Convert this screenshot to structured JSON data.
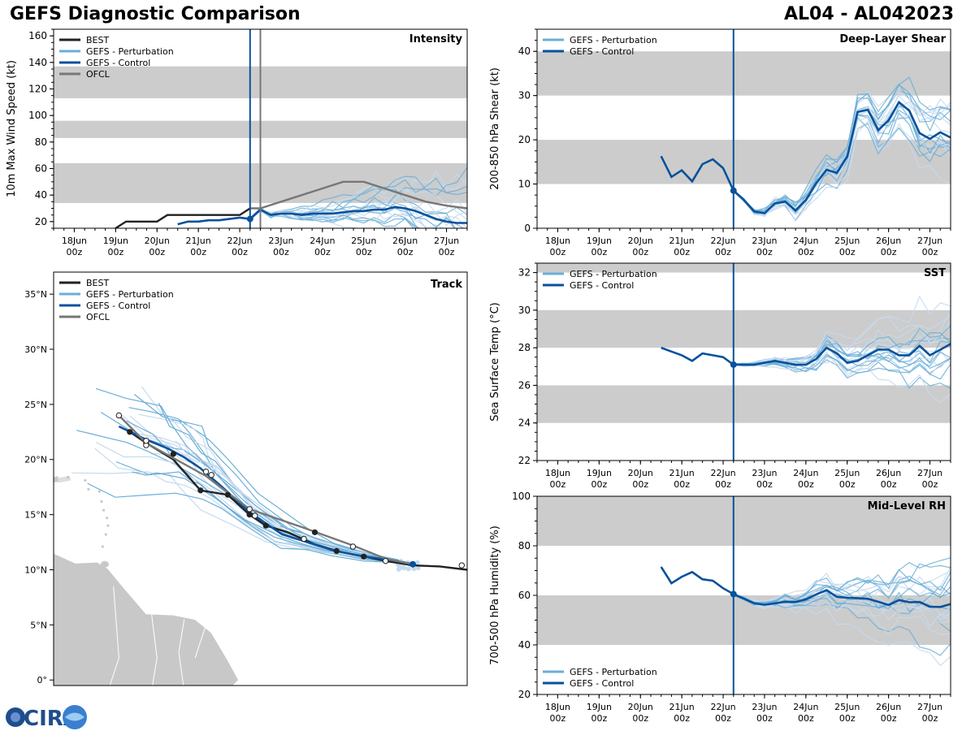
{
  "header": {
    "title_left": "GEFS Diagnostic Comparison",
    "title_right": "AL04 - AL042023"
  },
  "logo": {
    "text": "CIRA"
  },
  "colors": {
    "best": "#222222",
    "pert": "#6baed6",
    "pert_light": "#c6dbef",
    "control": "#08519c",
    "ofcl": "#777777",
    "band": "#cccccc",
    "land": "#c8c8c8"
  },
  "time_axis": {
    "tick_days": [
      18,
      19,
      20,
      21,
      22,
      23,
      24,
      25,
      26,
      27
    ],
    "tick_labels_top": [
      "18Jun",
      "19Jun",
      "20Jun",
      "21Jun",
      "22Jun",
      "23Jun",
      "24Jun",
      "25Jun",
      "26Jun",
      "27Jun"
    ],
    "tick_labels_bottom": [
      "00z",
      "00z",
      "00z",
      "00z",
      "00z",
      "00z",
      "00z",
      "00z",
      "00z",
      "00z"
    ],
    "xmin": 17.5,
    "xmax": 27.5,
    "init_time": 22.25
  },
  "legends": {
    "intensity": [
      "BEST",
      "GEFS - Perturbation",
      "GEFS - Control",
      "OFCL"
    ],
    "shear": [
      "GEFS - Perturbation",
      "GEFS - Control"
    ],
    "sst": [
      "GEFS - Perturbation",
      "GEFS - Control"
    ],
    "rh": [
      "GEFS - Perturbation",
      "GEFS - Control"
    ],
    "track": [
      "BEST",
      "GEFS - Perturbation",
      "GEFS - Control",
      "OFCL"
    ]
  },
  "chart_data": [
    {
      "id": "intensity",
      "type": "line",
      "title": "Intensity",
      "ylabel": "10m Max Wind Speed (kt)",
      "ylim": [
        15,
        165
      ],
      "yticks": [
        20,
        40,
        60,
        80,
        100,
        120,
        140,
        160
      ],
      "bands": [
        [
          34,
          64
        ],
        [
          83,
          96
        ],
        [
          113,
          137
        ]
      ],
      "ofcl_vline": 22.5,
      "series": [
        {
          "name": "BEST",
          "x": [
            19.0,
            19.25,
            19.5,
            19.75,
            20.0,
            20.25,
            20.5,
            20.75,
            21.0,
            21.25,
            21.5,
            21.75,
            22.0,
            22.25
          ],
          "y": [
            15,
            20,
            20,
            20,
            20,
            25,
            25,
            25,
            25,
            25,
            25,
            25,
            25,
            30
          ]
        },
        {
          "name": "OFCL",
          "x": [
            22.25,
            22.5,
            23.0,
            23.5,
            24.0,
            24.5,
            25.0,
            25.5,
            26.0,
            26.5,
            27.0,
            27.5
          ],
          "y": [
            30,
            30,
            35,
            40,
            45,
            50,
            50,
            45,
            40,
            35,
            32,
            30
          ]
        },
        {
          "name": "GEFS - Control",
          "x": [
            20.5,
            20.75,
            21.0,
            21.25,
            21.5,
            21.75,
            22.0,
            22.25,
            22.5,
            22.75,
            23.0,
            23.25,
            23.5,
            23.75,
            24.0,
            24.25,
            24.5,
            24.75,
            25.0,
            25.25,
            25.5,
            25.75,
            26.0,
            26.25,
            26.5,
            26.75,
            27.0,
            27.25,
            27.5
          ],
          "y": [
            18,
            20,
            20,
            21,
            21,
            22,
            23,
            22,
            29,
            25,
            26,
            26,
            25,
            26,
            26,
            26,
            27,
            28,
            28,
            29,
            29,
            31,
            30,
            28,
            25,
            22,
            20,
            19,
            19
          ]
        }
      ]
    },
    {
      "id": "shear",
      "type": "line",
      "title": "Deep-Layer Shear",
      "ylabel": "200-850 hPa Shear (kt)",
      "ylim": [
        0,
        45
      ],
      "yticks": [
        0,
        10,
        20,
        30,
        40
      ],
      "bands": [
        [
          10,
          20
        ],
        [
          30,
          40
        ]
      ],
      "series": [
        {
          "name": "GEFS - Control",
          "x": [
            20.5,
            20.75,
            21.0,
            21.25,
            21.5,
            21.75,
            22.0,
            22.25,
            22.5,
            22.75,
            23.0,
            23.25,
            23.5,
            23.75,
            24.0,
            24.25,
            24.5,
            24.75,
            25.0,
            25.25,
            25.5,
            25.75,
            26.0,
            26.25,
            26.5,
            26.75,
            27.0,
            27.25,
            27.5
          ],
          "y": [
            16.3,
            11.6,
            13.1,
            10.6,
            14.5,
            15.6,
            13.6,
            8.5,
            6.4,
            3.8,
            3.4,
            5.6,
            6.0,
            4.0,
            6.4,
            10.2,
            13.2,
            12.5,
            16.2,
            26.3,
            26.8,
            22.2,
            24.4,
            28.5,
            26.6,
            21.5,
            20.2,
            21.7,
            20.5
          ]
        }
      ]
    },
    {
      "id": "sst",
      "type": "line",
      "title": "SST",
      "ylabel": "Sea Surface Temp (°C)",
      "ylim": [
        22,
        32.5
      ],
      "yticks": [
        22,
        24,
        26,
        28,
        30,
        32
      ],
      "bands": [
        [
          24,
          26
        ],
        [
          28,
          30
        ],
        [
          32,
          33
        ]
      ],
      "series": [
        {
          "name": "GEFS - Control",
          "x": [
            20.5,
            20.75,
            21.0,
            21.25,
            21.5,
            21.75,
            22.0,
            22.25,
            22.5,
            22.75,
            23.0,
            23.25,
            23.5,
            23.75,
            24.0,
            24.25,
            24.5,
            24.75,
            25.0,
            25.25,
            25.5,
            25.75,
            26.0,
            26.25,
            26.5,
            26.75,
            27.0,
            27.25,
            27.5
          ],
          "y": [
            28.0,
            27.8,
            27.6,
            27.3,
            27.7,
            27.6,
            27.5,
            27.1,
            27.1,
            27.1,
            27.2,
            27.3,
            27.2,
            27.1,
            27.1,
            27.4,
            28.0,
            27.7,
            27.2,
            27.3,
            27.6,
            27.9,
            27.9,
            27.6,
            27.6,
            28.1,
            27.6,
            27.9,
            28.2
          ]
        }
      ]
    },
    {
      "id": "rh",
      "type": "line",
      "title": "Mid-Level RH",
      "ylabel": "700-500 hPa Humidity (%)",
      "ylim": [
        20,
        100
      ],
      "yticks": [
        20,
        40,
        60,
        80,
        100
      ],
      "bands": [
        [
          40,
          60
        ],
        [
          80,
          100
        ]
      ],
      "series": [
        {
          "name": "GEFS - Control",
          "x": [
            20.5,
            20.75,
            21.0,
            21.25,
            21.5,
            21.75,
            22.0,
            22.25,
            22.5,
            22.75,
            23.0,
            23.25,
            23.5,
            23.75,
            24.0,
            24.25,
            24.5,
            24.75,
            25.0,
            25.25,
            25.5,
            25.75,
            26.0,
            26.25,
            26.5,
            26.75,
            27.0,
            27.25,
            27.5
          ],
          "y": [
            71.5,
            64.9,
            67.5,
            69.4,
            66.5,
            65.9,
            62.9,
            60.5,
            58.7,
            56.8,
            56.2,
            56.8,
            57.4,
            57.3,
            58.4,
            60.4,
            62.1,
            59.4,
            59.0,
            58.9,
            58.6,
            57.4,
            56.1,
            58.1,
            57.2,
            57.3,
            55.4,
            55.3,
            56.5
          ]
        }
      ]
    },
    {
      "id": "track",
      "type": "map",
      "title": "Track",
      "lon_range": [
        -66,
        -28
      ],
      "lat_range": [
        -0.5,
        37
      ],
      "ytick_labels": [
        "0°",
        "5°N",
        "10°N",
        "15°N",
        "20°N",
        "25°N",
        "30°N",
        "35°N"
      ],
      "ytick_lats": [
        0,
        5,
        10,
        15,
        20,
        25,
        30,
        35
      ],
      "series": [
        {
          "name": "BEST",
          "lon": [
            -28.0,
            -30.5,
            -33.0,
            -35.5,
            -37.5,
            -40.0,
            -42.0,
            -44.5,
            -46.5,
            -48.0,
            -50.0,
            -52.5,
            -55.0,
            -57.5,
            -59.0
          ],
          "lat": [
            10.0,
            10.3,
            10.4,
            10.8,
            11.2,
            11.7,
            12.3,
            13.4,
            14.0,
            15.0,
            16.8,
            17.2,
            20.0,
            21.5,
            22.5
          ]
        },
        {
          "name": "GEFS - Control",
          "lon": [
            -33.0,
            -34.5,
            -37.5,
            -40.5,
            -43.0,
            -45.0,
            -48.0,
            -50.5,
            -52.5,
            -54.0,
            -55.5,
            -57.5,
            -60.0
          ],
          "lat": [
            10.5,
            10.8,
            11.2,
            11.8,
            12.6,
            13.2,
            15.2,
            17.5,
            19.2,
            20.2,
            21.0,
            21.8,
            23.0
          ]
        },
        {
          "name": "OFCL",
          "lon": [
            -33.0,
            -35.5,
            -38.5,
            -43.0,
            -48.0,
            -52.0,
            -57.5,
            -60.0
          ],
          "lat": [
            10.5,
            11.0,
            12.2,
            13.8,
            15.5,
            18.5,
            21.5,
            24.0
          ]
        }
      ],
      "best_points": {
        "lon": [
          -33.0,
          -37.5,
          -40.0,
          -42.0,
          -46.5,
          -48.0,
          -50.0,
          -52.5,
          -55.0,
          -57.5,
          -59.0
        ],
        "lat": [
          10.5,
          11.2,
          11.7,
          13.4,
          14.0,
          15.0,
          16.8,
          17.2,
          20.5,
          21.5,
          22.5
        ]
      },
      "ofcl_points": {
        "lon": [
          -28.5,
          -35.5,
          -38.5,
          -43.0,
          -47.5,
          -48.0,
          -51.5,
          -52.0,
          -57.5,
          -57.5,
          -60.0
        ],
        "lat": [
          10.4,
          10.8,
          12.1,
          12.8,
          14.9,
          15.5,
          18.6,
          18.9,
          21.3,
          21.7,
          24.0
        ]
      }
    }
  ]
}
